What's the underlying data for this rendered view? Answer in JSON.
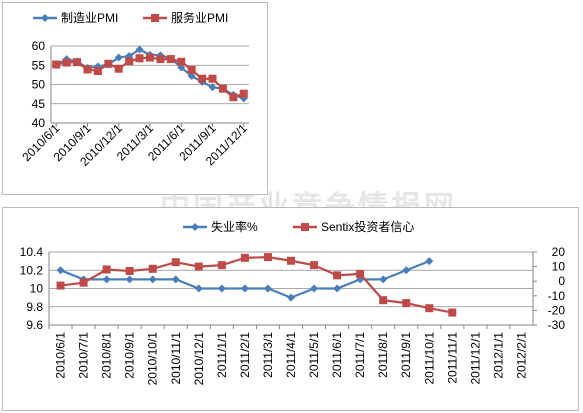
{
  "watermark": "中国产业竞争情报网",
  "colors": {
    "blue": "#4a7ebb",
    "red": "#be4b48",
    "grid": "#868686",
    "axis": "#868686"
  },
  "chart_data": [
    {
      "type": "line",
      "title": "",
      "xlabel": "",
      "ylabel": "",
      "legend_position": "top",
      "grid": "horizontal",
      "ylim": [
        40,
        60
      ],
      "yticks": [
        40,
        45,
        50,
        55,
        60
      ],
      "x": [
        "2010/6",
        "2010/7",
        "2010/8",
        "2010/9",
        "2010/10",
        "2010/11",
        "2010/12",
        "2011/1",
        "2011/2",
        "2011/3",
        "2011/4",
        "2011/5",
        "2011/6",
        "2011/7",
        "2011/8",
        "2011/9",
        "2011/10",
        "2011/11",
        "2011/12"
      ],
      "xtick_labels": [
        "2010/6/1",
        "2010/9/1",
        "2010/12/1",
        "2011/3/1",
        "2011/6/1",
        "2011/9/1",
        "2011/12/1"
      ],
      "series": [
        {
          "name": "制造业PMI",
          "color": "#4a7ebb",
          "marker": "diamond",
          "values": [
            55.1,
            56.6,
            56.0,
            54.3,
            54.7,
            55.2,
            57.0,
            57.4,
            59.1,
            57.7,
            57.6,
            56.8,
            54.4,
            52.2,
            50.7,
            49.3,
            48.9,
            47.3,
            46.4
          ]
        },
        {
          "name": "服务业PMI",
          "color": "#be4b48",
          "marker": "square",
          "values": [
            55.2,
            55.7,
            55.8,
            53.9,
            53.5,
            55.4,
            54.1,
            56.0,
            56.8,
            57.0,
            56.6,
            56.6,
            55.9,
            53.8,
            51.5,
            51.5,
            48.9,
            46.7,
            47.6
          ]
        }
      ]
    },
    {
      "type": "line",
      "title": "",
      "xlabel": "",
      "ylabel": "",
      "legend_position": "top",
      "grid": "horizontal",
      "x": [
        "2010/6/1",
        "2010/7/1",
        "2010/8/1",
        "2010/9/1",
        "2010/10/1",
        "2010/11/1",
        "2010/12/1",
        "2011/1/1",
        "2011/2/1",
        "2011/3/1",
        "2011/4/1",
        "2011/5/1",
        "2011/6/1",
        "2011/7/1",
        "2011/8/1",
        "2011/9/1",
        "2011/10/1",
        "2011/11/1",
        "2011/12/1",
        "2012/1/1",
        "2012/2/1"
      ],
      "y_left": {
        "ylim": [
          9.6,
          10.4
        ],
        "ticks": [
          "9.6",
          "9.8",
          "10",
          "10.2",
          "10.4"
        ]
      },
      "y_right": {
        "ylim": [
          -30,
          20
        ],
        "ticks": [
          "-30",
          "-20",
          "-10",
          "0",
          "10",
          "20"
        ]
      },
      "series": [
        {
          "name": "失业率%",
          "axis": "left",
          "color": "#4a7ebb",
          "marker": "diamond",
          "values": [
            10.2,
            10.1,
            10.1,
            10.1,
            10.1,
            10.1,
            10.0,
            10.0,
            10.0,
            10.0,
            9.9,
            10.0,
            10.0,
            10.1,
            10.1,
            10.2,
            10.3,
            null,
            null,
            null,
            null
          ]
        },
        {
          "name": "Sentix投资者信心",
          "axis": "right",
          "color": "#be4b48",
          "marker": "square",
          "values": [
            -3,
            -1,
            8,
            7,
            8.5,
            13,
            10,
            11,
            16,
            16.5,
            14,
            11,
            4,
            5,
            -13,
            -15,
            -18.5,
            -21.5,
            null,
            null,
            null
          ]
        }
      ]
    }
  ]
}
